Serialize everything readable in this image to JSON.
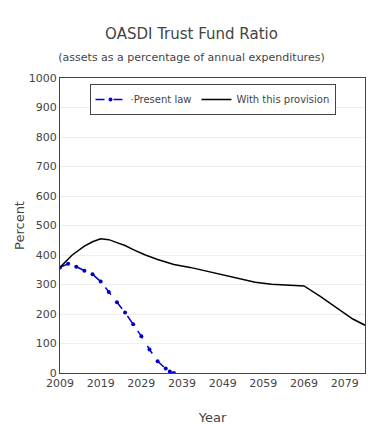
{
  "chart_data": {
    "type": "line",
    "title": "OASDI Trust Fund Ratio",
    "subtitle": "(assets as a percentage of annual expenditures)",
    "xlabel": "Year",
    "ylabel": "Percent",
    "xlim": [
      2009,
      2084
    ],
    "ylim": [
      0,
      1000
    ],
    "xticks": [
      2009,
      2019,
      2029,
      2039,
      2049,
      2059,
      2069,
      2079
    ],
    "yticks": [
      0,
      100,
      200,
      300,
      400,
      500,
      600,
      700,
      800,
      900,
      1000
    ],
    "grid": true,
    "legend": "top",
    "series": [
      {
        "name": "·Present law",
        "color": "#0000cc",
        "line_style": "dashed",
        "marker": "dot",
        "x": [
          2009,
          2011,
          2013,
          2015,
          2017,
          2019,
          2021,
          2023,
          2025,
          2027,
          2029,
          2031,
          2033,
          2035,
          2036,
          2037
        ],
        "values": [
          358,
          370,
          360,
          347,
          335,
          310,
          275,
          240,
          205,
          165,
          125,
          80,
          40,
          15,
          5,
          0
        ]
      },
      {
        "name": "With this provision",
        "color": "#000000",
        "line_style": "solid",
        "x": [
          2009,
          2012,
          2015,
          2017,
          2019,
          2021,
          2023,
          2025,
          2027,
          2030,
          2033,
          2037,
          2041,
          2045,
          2049,
          2053,
          2057,
          2061,
          2065,
          2069,
          2073,
          2077,
          2081,
          2084
        ],
        "values": [
          358,
          400,
          430,
          445,
          455,
          452,
          442,
          432,
          418,
          400,
          385,
          368,
          358,
          345,
          332,
          320,
          308,
          301,
          298,
          295,
          260,
          220,
          183,
          162
        ]
      }
    ]
  }
}
